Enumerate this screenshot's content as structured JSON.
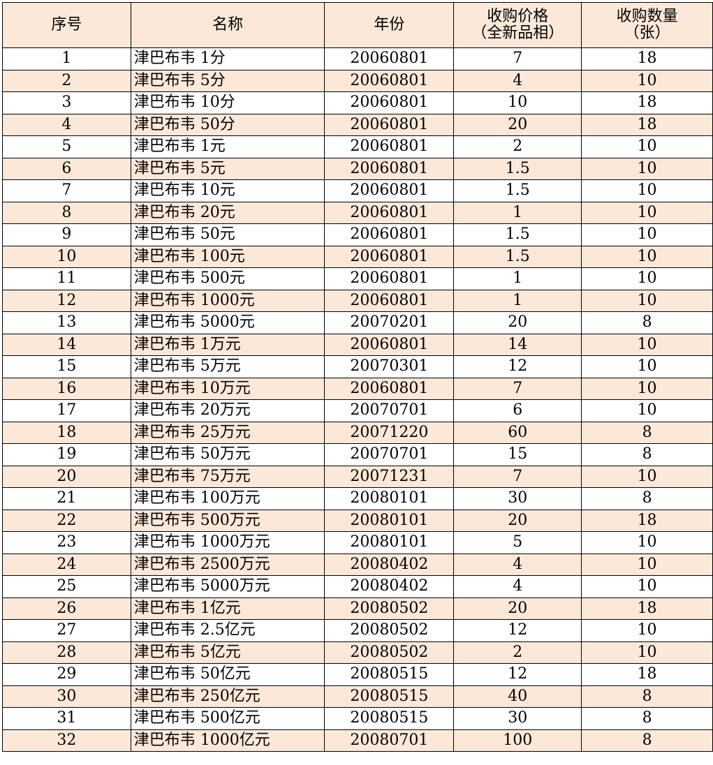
{
  "header": {
    "no": "序号",
    "name": "名称",
    "year": "年份",
    "price_l1": "收购价格",
    "price_l2": "（全新品相）",
    "qty_l1": "收购数量",
    "qty_l2": "（张）"
  },
  "colors": {
    "header_bg": "#fce8d9",
    "stripe_bg": "#fce8d9"
  },
  "rows": [
    [
      "1",
      "津巴布韦 1分",
      "20060801",
      "7",
      "18"
    ],
    [
      "2",
      "津巴布韦 5分",
      "20060801",
      "4",
      "10"
    ],
    [
      "3",
      "津巴布韦 10分",
      "20060801",
      "10",
      "18"
    ],
    [
      "4",
      "津巴布韦 50分",
      "20060801",
      "20",
      "18"
    ],
    [
      "5",
      "津巴布韦 1元",
      "20060801",
      "2",
      "10"
    ],
    [
      "6",
      "津巴布韦 5元",
      "20060801",
      "1.5",
      "10"
    ],
    [
      "7",
      "津巴布韦 10元",
      "20060801",
      "1.5",
      "10"
    ],
    [
      "8",
      "津巴布韦 20元",
      "20060801",
      "1",
      "10"
    ],
    [
      "9",
      "津巴布韦 50元",
      "20060801",
      "1.5",
      "10"
    ],
    [
      "10",
      "津巴布韦 100元",
      "20060801",
      "1.5",
      "10"
    ],
    [
      "11",
      "津巴布韦 500元",
      "20060801",
      "1",
      "10"
    ],
    [
      "12",
      "津巴布韦 1000元",
      "20060801",
      "1",
      "10"
    ],
    [
      "13",
      "津巴布韦 5000元",
      "20070201",
      "20",
      "8"
    ],
    [
      "14",
      "津巴布韦 1万元",
      "20060801",
      "14",
      "10"
    ],
    [
      "15",
      "津巴布韦 5万元",
      "20070301",
      "12",
      "10"
    ],
    [
      "16",
      "津巴布韦 10万元",
      "20060801",
      "7",
      "10"
    ],
    [
      "17",
      "津巴布韦 20万元",
      "20070701",
      "6",
      "10"
    ],
    [
      "18",
      "津巴布韦 25万元",
      "20071220",
      "60",
      "8"
    ],
    [
      "19",
      "津巴布韦 50万元",
      "20070701",
      "15",
      "8"
    ],
    [
      "20",
      "津巴布韦 75万元",
      "20071231",
      "7",
      "10"
    ],
    [
      "21",
      "津巴布韦 100万元",
      "20080101",
      "30",
      "8"
    ],
    [
      "22",
      "津巴布韦 500万元",
      "20080101",
      "20",
      "18"
    ],
    [
      "23",
      "津巴布韦 1000万元",
      "20080101",
      "5",
      "10"
    ],
    [
      "24",
      "津巴布韦 2500万元",
      "20080402",
      "4",
      "10"
    ],
    [
      "25",
      "津巴布韦 5000万元",
      "20080402",
      "4",
      "10"
    ],
    [
      "26",
      "津巴布韦 1亿元",
      "20080502",
      "20",
      "18"
    ],
    [
      "27",
      "津巴布韦 2.5亿元",
      "20080502",
      "12",
      "10"
    ],
    [
      "28",
      "津巴布韦 5亿元",
      "20080502",
      "2",
      "10"
    ],
    [
      "29",
      "津巴布韦 50亿元",
      "20080515",
      "12",
      "18"
    ],
    [
      "30",
      "津巴布韦 250亿元",
      "20080515",
      "40",
      "8"
    ],
    [
      "31",
      "津巴布韦 500亿元",
      "20080515",
      "30",
      "8"
    ],
    [
      "32",
      "津巴布韦 1000亿元",
      "20080701",
      "100",
      "8"
    ]
  ]
}
